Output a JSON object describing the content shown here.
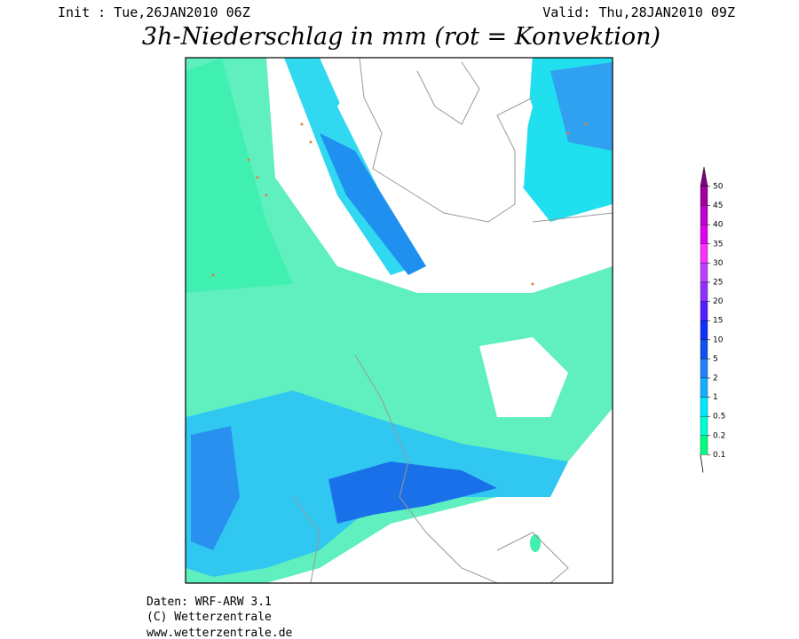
{
  "header": {
    "init": "Init : Tue,26JAN2010 06Z",
    "valid": "Valid: Thu,28JAN2010 09Z",
    "title": "3h-Niederschlag in mm (rot = Konvektion)"
  },
  "colorbar": {
    "labels": [
      "50",
      "45",
      "40",
      "35",
      "30",
      "25",
      "20",
      "15",
      "10",
      "5",
      "2",
      "1",
      "0.5",
      "0.2",
      "0.1"
    ],
    "colors": [
      "#a000a0",
      "#c000d0",
      "#e000f0",
      "#ff30ff",
      "#c040ff",
      "#9030ff",
      "#5020ff",
      "#1030ff",
      "#1050f0",
      "#2080ff",
      "#10b0ff",
      "#00e8ff",
      "#00ffd0",
      "#00ff80"
    ],
    "cap_color": "#800080"
  },
  "footer": {
    "line1": "Daten: WRF-ARW 3.1",
    "line2": "(C) Wetterzentrale",
    "line3": "www.wetterzentrale.de"
  }
}
